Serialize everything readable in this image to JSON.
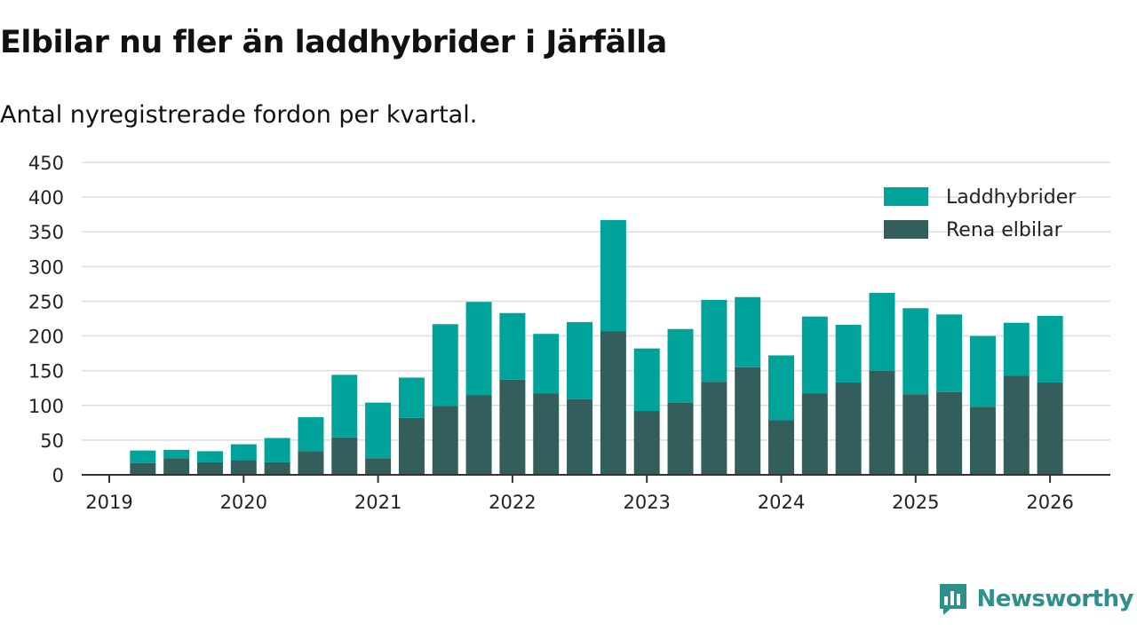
{
  "header": {
    "title": "Elbilar nu fler än laddhybrider i Järfälla",
    "subtitle": "Antal nyregistrerade fordon per kvartal."
  },
  "branding": {
    "name": "Newsworthy",
    "icon": "newsworthy-logo-icon"
  },
  "colors": {
    "laddhybrider": "#00a39a",
    "elbilar": "#345e5c",
    "grid": "#dddddd",
    "axis": "#333333",
    "brand": "#2f8f8a"
  },
  "chart_data": {
    "type": "bar",
    "stacked": true,
    "title": "Elbilar nu fler än laddhybrider i Järfälla",
    "subtitle": "Antal nyregistrerade fordon per kvartal.",
    "xlabel": "",
    "ylabel": "",
    "ylim": [
      0,
      450
    ],
    "yticks": [
      0,
      50,
      100,
      150,
      200,
      250,
      300,
      350,
      400,
      450
    ],
    "xticks": [
      "2019",
      "2020",
      "2021",
      "2022",
      "2023",
      "2024",
      "2025",
      "2026"
    ],
    "grid": true,
    "legend_position": "top-right",
    "categories": [
      "2019Q2",
      "2019Q3",
      "2019Q4",
      "2020Q1",
      "2020Q2",
      "2020Q3",
      "2020Q4",
      "2021Q1",
      "2021Q2",
      "2021Q3",
      "2021Q4",
      "2022Q1",
      "2022Q2",
      "2022Q3",
      "2022Q4",
      "2023Q1",
      "2023Q2",
      "2023Q3",
      "2023Q4",
      "2024Q1",
      "2024Q2",
      "2024Q3",
      "2024Q4",
      "2025Q1",
      "2025Q2",
      "2025Q3",
      "2025Q4",
      "2026Q1"
    ],
    "series": [
      {
        "name": "Rena elbilar",
        "values": [
          17,
          24,
          18,
          21,
          18,
          34,
          54,
          24,
          82,
          99,
          115,
          137,
          117,
          109,
          207,
          92,
          104,
          134,
          155,
          79,
          117,
          133,
          150,
          116,
          119,
          98,
          143,
          133
        ]
      },
      {
        "name": "Laddhybrider",
        "values": [
          18,
          12,
          16,
          23,
          35,
          49,
          90,
          80,
          58,
          118,
          134,
          96,
          86,
          111,
          160,
          90,
          106,
          118,
          101,
          93,
          111,
          83,
          112,
          124,
          112,
          102,
          76,
          96
        ]
      }
    ],
    "legend": [
      "Laddhybrider",
      "Rena elbilar"
    ]
  }
}
